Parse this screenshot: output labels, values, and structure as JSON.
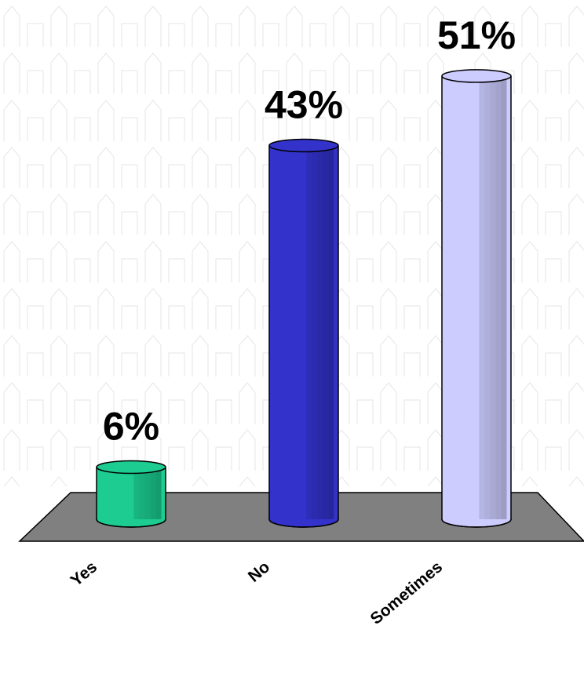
{
  "chart_data": {
    "type": "bar3d",
    "categories": [
      "Yes",
      "No",
      "Sometimes"
    ],
    "values": [
      6,
      43,
      51
    ],
    "value_labels": [
      "6%",
      "43%",
      "51%"
    ],
    "colors": [
      "#1ccc90",
      "#3333cc",
      "#ccccff"
    ]
  }
}
